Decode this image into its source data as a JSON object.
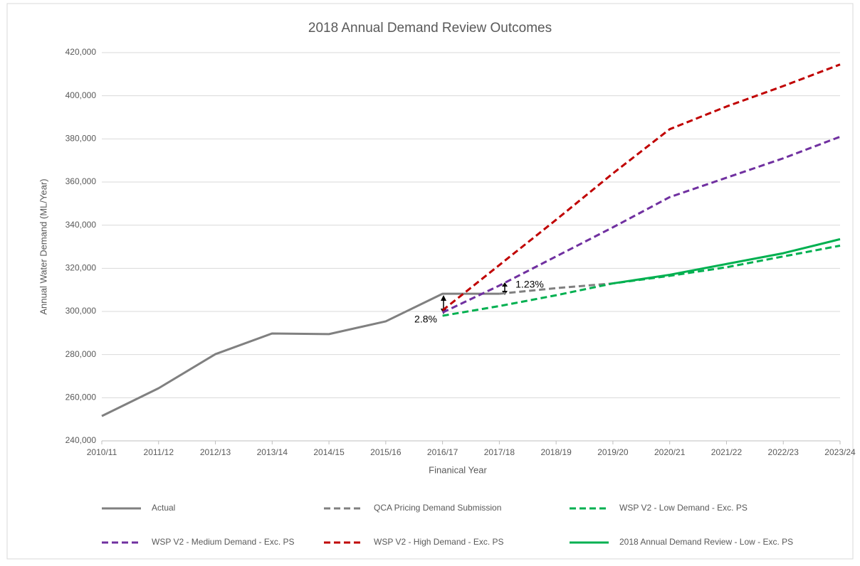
{
  "chart_data": {
    "type": "line",
    "title": "2018 Annual Demand Review Outcomes",
    "x_label": "Finanical Year",
    "y_label": "Annual Water Demand (ML/Year)",
    "categories": [
      "2010/11",
      "2011/12",
      "2012/13",
      "2013/14",
      "2014/15",
      "2015/16",
      "2016/17",
      "2017/18",
      "2018/19",
      "2019/20",
      "2020/21",
      "2021/22",
      "2022/23",
      "2023/24"
    ],
    "ylim": [
      240000,
      420000
    ],
    "yticks": [
      {
        "value": 240000,
        "label": "240,000"
      },
      {
        "value": 260000,
        "label": "260,000"
      },
      {
        "value": 280000,
        "label": "280,000"
      },
      {
        "value": 300000,
        "label": "300,000"
      },
      {
        "value": 320000,
        "label": "320,000"
      },
      {
        "value": 340000,
        "label": "340,000"
      },
      {
        "value": 360000,
        "label": "360,000"
      },
      {
        "value": 380000,
        "label": "380,000"
      },
      {
        "value": 400000,
        "label": "400,000"
      },
      {
        "value": 420000,
        "label": "420,000"
      }
    ],
    "grid": true,
    "series": [
      {
        "name": "Actual",
        "color": "#808080",
        "dashed": false,
        "values": [
          251500,
          264400,
          280200,
          289800,
          289500,
          295400,
          308200,
          308200,
          null,
          null,
          null,
          null,
          null,
          null
        ]
      },
      {
        "name": "QCA Pricing Demand Submission",
        "color": "#808080",
        "dashed": true,
        "values": [
          null,
          null,
          null,
          null,
          null,
          null,
          null,
          308200,
          310800,
          313000,
          null,
          null,
          null,
          null
        ]
      },
      {
        "name": "WSP V2 - Low Demand - Exc. PS",
        "color": "#00b050",
        "dashed": true,
        "values": [
          null,
          null,
          null,
          null,
          null,
          null,
          298000,
          302500,
          307500,
          313000,
          316500,
          320500,
          325500,
          330500
        ]
      },
      {
        "name": "WSP V2 - Medium Demand - Exc. PS",
        "color": "#7030a0",
        "dashed": true,
        "values": [
          null,
          null,
          null,
          null,
          null,
          null,
          299500,
          312000,
          325500,
          339000,
          353000,
          362000,
          371000,
          381000
        ]
      },
      {
        "name": "WSP V2 - High Demand - Exc. PS",
        "color": "#c00000",
        "dashed": true,
        "values": [
          null,
          null,
          null,
          null,
          null,
          null,
          300500,
          321500,
          342500,
          364000,
          384500,
          395000,
          404500,
          414500
        ]
      },
      {
        "name": "2018 Annual  Demand Review - Low - Exc. PS",
        "color": "#00b050",
        "dashed": false,
        "values": [
          null,
          null,
          null,
          null,
          null,
          null,
          null,
          null,
          null,
          313000,
          317000,
          322000,
          327000,
          333500
        ]
      }
    ],
    "annotations": [
      "2.8%",
      "1.23%"
    ]
  }
}
